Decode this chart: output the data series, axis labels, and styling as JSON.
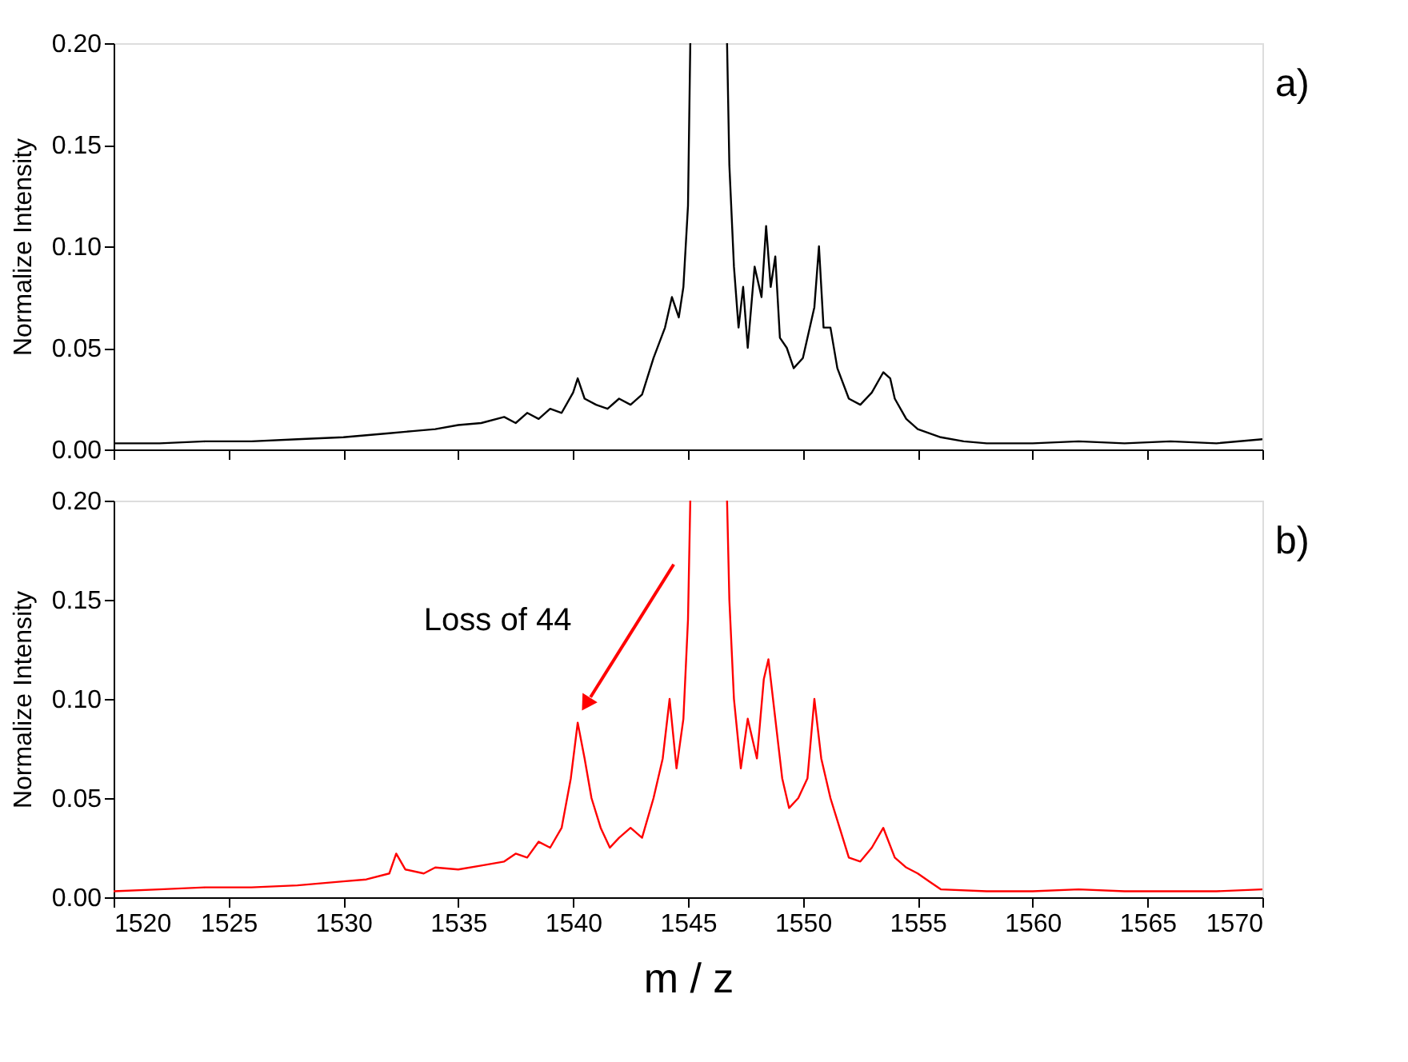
{
  "chart_data": [
    {
      "type": "line",
      "ylabel": "Normalize Intensity",
      "annotations": [
        "a)"
      ],
      "xlim": [
        1520,
        1570
      ],
      "xticks": [
        1520,
        1525,
        1530,
        1535,
        1540,
        1545,
        1550,
        1555,
        1560,
        1565,
        1570
      ],
      "ylim": [
        0,
        0.2
      ],
      "yticks": [
        {
          "value": 0,
          "label": "0.00"
        },
        {
          "value": 0.05,
          "label": "0.05"
        },
        {
          "value": 0.1,
          "label": "0.10"
        },
        {
          "value": 0.15,
          "label": "0.15"
        },
        {
          "value": 0.2,
          "label": "0.20"
        }
      ],
      "tick_labels": "y",
      "grid": false,
      "marker": "none",
      "line_style": "solid",
      "series": [
        {
          "color": "#000000",
          "x": [
            1520,
            1522,
            1524,
            1526,
            1528,
            1530,
            1531,
            1532,
            1533,
            1534,
            1535,
            1536,
            1537,
            1537.5,
            1538,
            1538.5,
            1539,
            1539.5,
            1540,
            1540.2,
            1540.5,
            1541,
            1541.5,
            1542,
            1542.5,
            1543,
            1543.5,
            1544,
            1544.3,
            1544.6,
            1544.8,
            1545.0,
            1545.1,
            1545.9,
            1546.7,
            1546.8,
            1547,
            1547.2,
            1547.4,
            1547.6,
            1547.9,
            1548.2,
            1548.4,
            1548.6,
            1548.8,
            1549,
            1549.3,
            1549.6,
            1550,
            1550.5,
            1550.7,
            1550.9,
            1551.2,
            1551.5,
            1552,
            1552.5,
            1553,
            1553.5,
            1553.8,
            1554,
            1554.5,
            1555,
            1556,
            1557,
            1558,
            1560,
            1562,
            1564,
            1566,
            1568,
            1570
          ],
          "values": [
            0.003,
            0.003,
            0.004,
            0.004,
            0.005,
            0.006,
            0.007,
            0.008,
            0.009,
            0.01,
            0.012,
            0.013,
            0.016,
            0.013,
            0.018,
            0.015,
            0.02,
            0.018,
            0.028,
            0.035,
            0.025,
            0.022,
            0.02,
            0.025,
            0.022,
            0.027,
            0.045,
            0.06,
            0.075,
            0.065,
            0.08,
            0.12,
            0.2,
            null,
            0.2,
            0.14,
            0.09,
            0.06,
            0.08,
            0.05,
            0.09,
            0.075,
            0.11,
            0.08,
            0.095,
            0.055,
            0.05,
            0.04,
            0.045,
            0.07,
            0.1,
            0.06,
            0.06,
            0.04,
            0.025,
            0.022,
            0.028,
            0.038,
            0.035,
            0.025,
            0.015,
            0.01,
            0.006,
            0.004,
            0.003,
            0.003,
            0.004,
            0.003,
            0.004,
            0.003,
            0.005
          ]
        }
      ]
    },
    {
      "type": "line",
      "xlabel": "m / z",
      "ylabel": "Normalize Intensity",
      "annotations": [
        {
          "text": "Loss of 44",
          "x": 1540.2,
          "y": 0.088
        },
        "b)"
      ],
      "xlim": [
        1520,
        1570
      ],
      "xticks": [
        1520,
        1525,
        1530,
        1535,
        1540,
        1545,
        1550,
        1555,
        1560,
        1565,
        1570
      ],
      "ylim": [
        0,
        0.2
      ],
      "yticks": [
        {
          "value": 0,
          "label": "0.00"
        },
        {
          "value": 0.05,
          "label": "0.05"
        },
        {
          "value": 0.1,
          "label": "0.10"
        },
        {
          "value": 0.15,
          "label": "0.15"
        },
        {
          "value": 0.2,
          "label": "0.20"
        }
      ],
      "grid": false,
      "marker": "none",
      "line_style": "solid",
      "series": [
        {
          "color": "#ff0000",
          "x": [
            1520,
            1522,
            1524,
            1526,
            1528,
            1530,
            1531,
            1532,
            1532.3,
            1532.7,
            1533.5,
            1534,
            1535,
            1536,
            1537,
            1537.5,
            1538,
            1538.5,
            1539,
            1539.5,
            1539.9,
            1540.2,
            1540.5,
            1540.8,
            1541.2,
            1541.6,
            1542,
            1542.5,
            1543,
            1543.5,
            1543.9,
            1544.2,
            1544.5,
            1544.8,
            1545.0,
            1545.1,
            1545.9,
            1546.7,
            1546.8,
            1547.0,
            1547.3,
            1547.6,
            1548,
            1548.3,
            1548.5,
            1548.8,
            1549.1,
            1549.4,
            1549.8,
            1550.2,
            1550.5,
            1550.8,
            1551.2,
            1551.6,
            1552,
            1552.5,
            1553,
            1553.5,
            1554,
            1554.5,
            1555,
            1555.5,
            1556,
            1558,
            1560,
            1562,
            1564,
            1566,
            1568,
            1570
          ],
          "values": [
            0.003,
            0.004,
            0.005,
            0.005,
            0.006,
            0.008,
            0.009,
            0.012,
            0.022,
            0.014,
            0.012,
            0.015,
            0.014,
            0.016,
            0.018,
            0.022,
            0.02,
            0.028,
            0.025,
            0.035,
            0.06,
            0.088,
            0.07,
            0.05,
            0.035,
            0.025,
            0.03,
            0.035,
            0.03,
            0.05,
            0.07,
            0.1,
            0.065,
            0.09,
            0.14,
            0.2,
            null,
            0.2,
            0.15,
            0.1,
            0.065,
            0.09,
            0.07,
            0.11,
            0.12,
            0.09,
            0.06,
            0.045,
            0.05,
            0.06,
            0.1,
            0.07,
            0.05,
            0.035,
            0.02,
            0.018,
            0.025,
            0.035,
            0.02,
            0.015,
            0.012,
            0.008,
            0.004,
            0.003,
            0.003,
            0.004,
            0.003,
            0.003,
            0.003,
            0.004
          ]
        }
      ]
    }
  ]
}
